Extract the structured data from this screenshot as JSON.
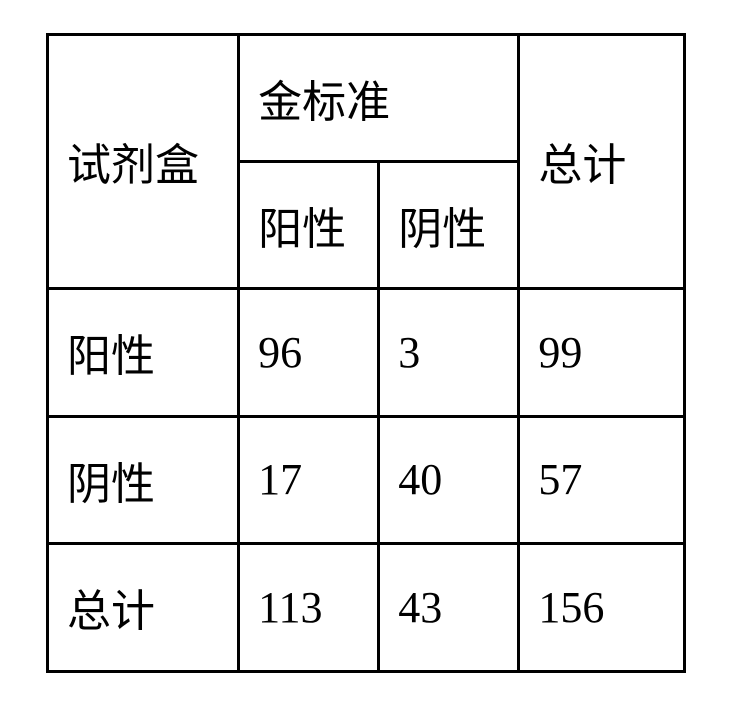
{
  "table": {
    "type": "table",
    "background_color": "#ffffff",
    "border_color": "#000000",
    "border_width": 3,
    "text_color": "#000000",
    "font_size": 44,
    "font_family": "SimSun",
    "header": {
      "kit_label": "试剂盒",
      "gold_standard_label": "金标准",
      "total_label": "总计",
      "sub_positive": "阳性",
      "sub_negative": "阴性"
    },
    "rows": [
      {
        "label": "阳性",
        "positive": "96",
        "negative": "3",
        "total": "99"
      },
      {
        "label": "阴性",
        "positive": "17",
        "negative": "40",
        "total": "57"
      },
      {
        "label": "总计",
        "positive": "113",
        "negative": "43",
        "total": "156"
      }
    ],
    "columns": [
      {
        "name": "kit",
        "width_pct": 30,
        "align": "left"
      },
      {
        "name": "positive",
        "width_pct": 22,
        "align": "left"
      },
      {
        "name": "negative",
        "width_pct": 22,
        "align": "left"
      },
      {
        "name": "total",
        "width_pct": 26,
        "align": "left"
      }
    ]
  }
}
